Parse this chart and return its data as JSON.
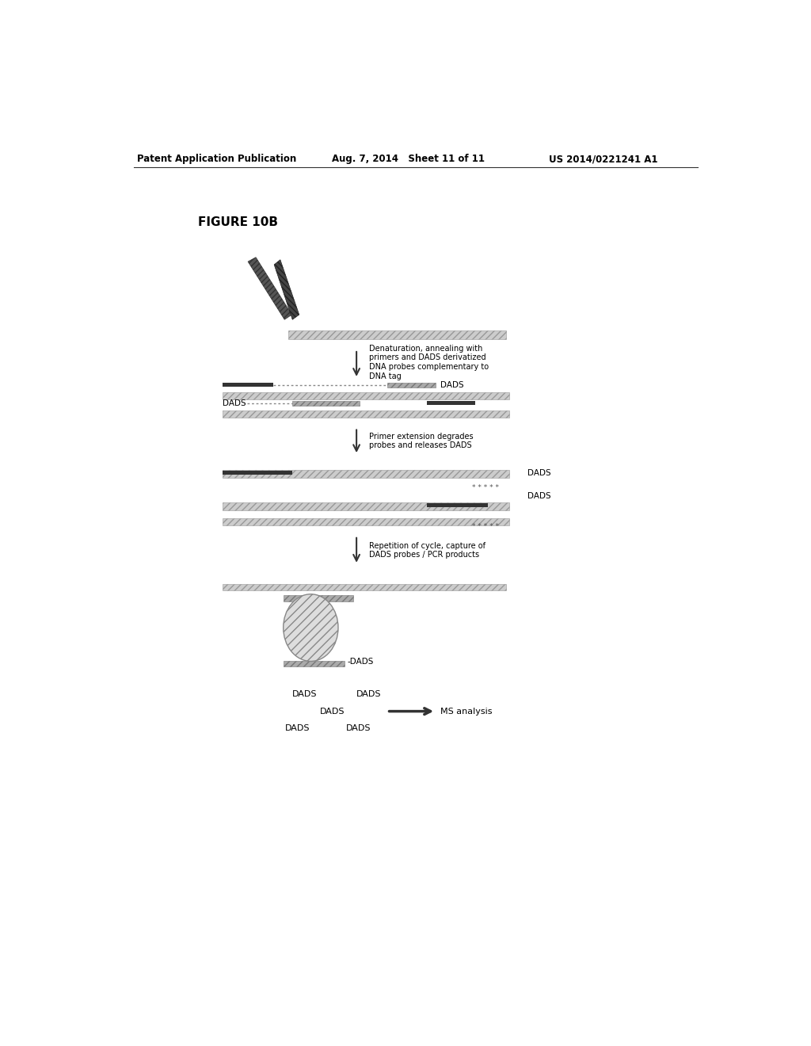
{
  "header_left": "Patent Application Publication",
  "header_mid": "Aug. 7, 2014   Sheet 11 of 11",
  "header_right": "US 2014/0221241 A1",
  "figure_label": "FIGURE 10B",
  "step1_arrow_text": "Denaturation, annealing with\nprimers and DADS derivatized\nDNA probes complementary to\nDNA tag",
  "step2_arrow_text": "Primer extension degrades\nprobes and releases DADS",
  "step3_arrow_text": "Repetition of cycle, capture of\nDADS probes / PCR products",
  "ms_text": "MS analysis",
  "dads_label": "DADS",
  "bg_color": "#ffffff",
  "line_color": "#888888",
  "dark_line_color": "#333333",
  "text_color": "#000000",
  "hatch_color": "#999999",
  "fig_width": 10.24,
  "fig_height": 13.2,
  "dpi": 100
}
